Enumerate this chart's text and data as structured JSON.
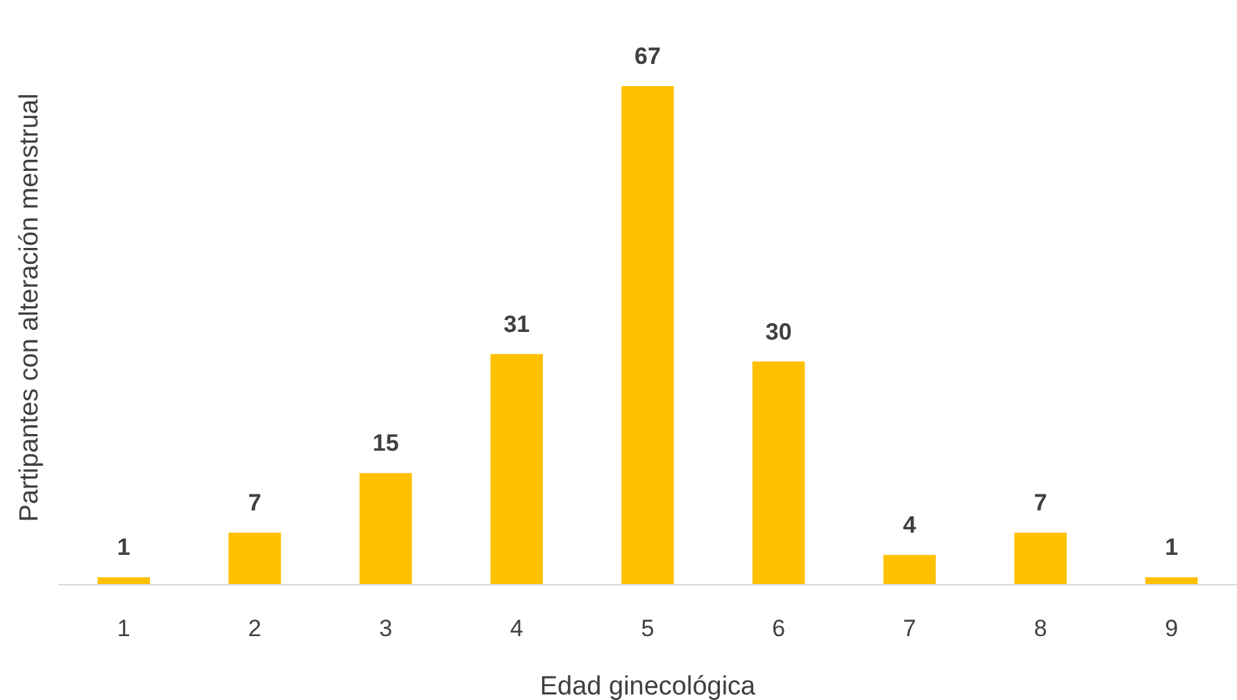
{
  "chart_data": {
    "type": "bar",
    "xlabel": "Edad ginecológica",
    "ylabel": "Partipantes con alteración menstrual",
    "categories": [
      "1",
      "2",
      "3",
      "4",
      "5",
      "6",
      "7",
      "8",
      "9"
    ],
    "values": [
      1,
      7,
      15,
      31,
      67,
      30,
      4,
      7,
      1
    ],
    "color": "#ffc000",
    "data_labels": true
  }
}
